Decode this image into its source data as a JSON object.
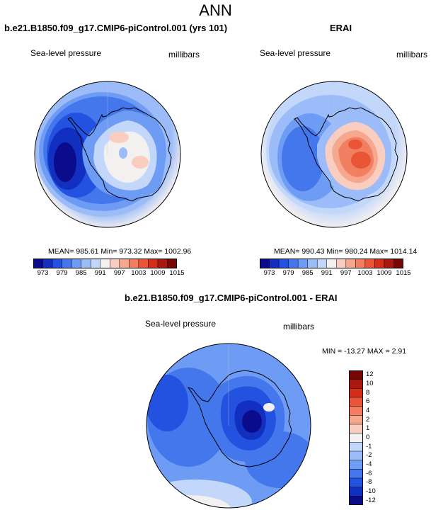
{
  "main_title": "ANN",
  "panels": {
    "left": {
      "title": "b.e21.B1850.f09_g17.CMIP6-piControl.001 (yrs 101)",
      "variable": "Sea-level pressure",
      "units": "millibars",
      "stats": "MEAN= 985.61  Min= 973.32  Max= 1002.96"
    },
    "right": {
      "title": "ERAI",
      "variable": "Sea-level pressure",
      "units": "millibars",
      "stats": "MEAN= 990.43  Min= 980.24  Max= 1014.14"
    },
    "diff": {
      "title": "b.e21.B1850.f09_g17.CMIP6-piControl.001 - ERAI",
      "variable": "Sea-level pressure",
      "units": "millibars",
      "stats": "MIN = -13.27  MAX =   2.91"
    }
  },
  "chart_data": [
    {
      "type": "heatmap",
      "title": "b.e21.B1850.f09_g17.CMIP6-piControl.001 (yrs 101)",
      "subtitle": "Sea-level pressure",
      "units": "millibars",
      "mean": 985.61,
      "min": 973.32,
      "max": 1002.96,
      "colorbar_levels": [
        973,
        976,
        979,
        982,
        985,
        988,
        991,
        994,
        997,
        1000,
        1003,
        1006,
        1009,
        1012,
        1015
      ],
      "colorbar_tick_labels": [
        "973",
        "979",
        "985",
        "991",
        "997",
        "1003",
        "1009",
        "1015"
      ]
    },
    {
      "type": "heatmap",
      "title": "ERAI",
      "subtitle": "Sea-level pressure",
      "units": "millibars",
      "mean": 990.43,
      "min": 980.24,
      "max": 1014.14,
      "colorbar_levels": [
        973,
        976,
        979,
        982,
        985,
        988,
        991,
        994,
        997,
        1000,
        1003,
        1006,
        1009,
        1012,
        1015
      ],
      "colorbar_tick_labels": [
        "973",
        "979",
        "985",
        "991",
        "997",
        "1003",
        "1009",
        "1015"
      ]
    },
    {
      "type": "heatmap",
      "title": "b.e21.B1850.f09_g17.CMIP6-piControl.001 - ERAI",
      "subtitle": "Sea-level pressure",
      "units": "millibars",
      "min": -13.27,
      "max": 2.91,
      "colorbar_levels": [
        -12,
        -10,
        -8,
        -6,
        -4,
        -2,
        -1,
        0,
        1,
        2,
        4,
        6,
        8,
        10,
        12
      ],
      "colorbar_tick_labels": [
        "12",
        "10",
        "8",
        "6",
        "4",
        "2",
        "1",
        "0",
        "-1",
        "-2",
        "-4",
        "-6",
        "-8",
        "-10",
        "-12"
      ]
    }
  ],
  "palette": [
    "#0b0c8c",
    "#1230c0",
    "#2452e0",
    "#4476ec",
    "#6e9cf4",
    "#9bbcf8",
    "#c3d7fb",
    "#f3f0f0",
    "#f9cdbf",
    "#f6a88e",
    "#f27f62",
    "#ea5535",
    "#d22f1a",
    "#a9190f",
    "#7a0505"
  ]
}
